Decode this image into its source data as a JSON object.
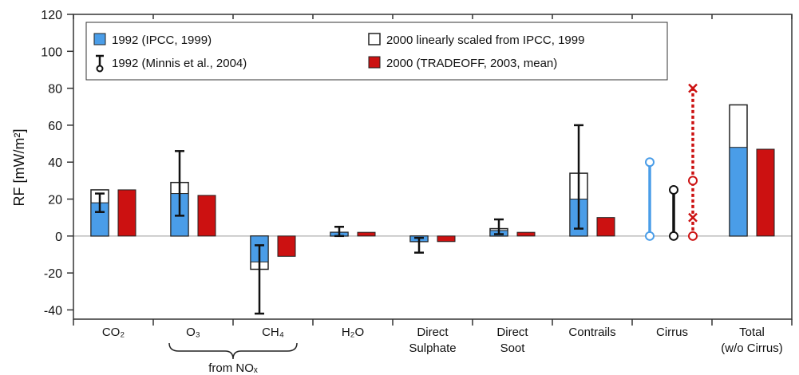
{
  "chart_data": {
    "type": "bar",
    "ylabel": "RF [mW/m²]",
    "ylim": [
      -45,
      120
    ],
    "yticks": [
      -40,
      -20,
      0,
      20,
      40,
      60,
      80,
      100,
      120
    ],
    "categories": [
      {
        "lines": [
          "CO₂"
        ]
      },
      {
        "lines": [
          "O₃"
        ]
      },
      {
        "lines": [
          "CH₄"
        ]
      },
      {
        "lines": [
          "H₂O"
        ]
      },
      {
        "lines": [
          "Direct",
          "Sulphate"
        ]
      },
      {
        "lines": [
          "Direct",
          "Soot"
        ]
      },
      {
        "lines": [
          "Contrails"
        ]
      },
      {
        "lines": [
          "Cirrus"
        ]
      },
      {
        "lines": [
          "Total",
          "(w/o Cirrus)"
        ]
      }
    ],
    "group_label": "from NOₓ",
    "legend": [
      {
        "label": "1992 (IPCC, 1999)",
        "color": "#4a9de8"
      },
      {
        "label": "1992 (Minnis et al., 2004)",
        "color": "#111111"
      },
      {
        "label": "2000 linearly scaled from IPCC, 1999",
        "color": "#ffffff"
      },
      {
        "label": "2000 (TRADEOFF, 2003, mean)",
        "color": "#cc1111"
      }
    ],
    "series": [
      {
        "name": "1992 (IPCC, 1999)",
        "color": "#4a9de8",
        "values": [
          18,
          23,
          -14,
          2,
          -3,
          3,
          20,
          null,
          48
        ],
        "error_low": [
          13,
          11,
          -42,
          0,
          -9,
          1,
          4,
          null,
          null
        ],
        "error_high": [
          23,
          46,
          -5,
          5,
          -1,
          9,
          60,
          null,
          null
        ]
      },
      {
        "name": "2000 linearly scaled from IPCC, 1999",
        "color": "#ffffff",
        "values": [
          25,
          29,
          -18,
          2,
          -3,
          4,
          34,
          null,
          71
        ]
      },
      {
        "name": "2000 (TRADEOFF, 2003, mean)",
        "color": "#cc1111",
        "values": [
          25,
          22,
          -11,
          2,
          -3,
          2,
          10,
          null,
          47
        ]
      }
    ],
    "cirrus_ranges": [
      {
        "name": "1992 (IPCC, 1999)",
        "color": "#4a9de8",
        "low": 0,
        "high": 40
      },
      {
        "name": "1992 (Minnis et al., 2004)",
        "color": "#111111",
        "low": 0,
        "high": 25
      },
      {
        "name": "2000 (TRADEOFF, 2003, mean)",
        "color": "#cc1111",
        "low": 0,
        "high": 30,
        "marks": [
          10,
          80
        ]
      }
    ]
  }
}
